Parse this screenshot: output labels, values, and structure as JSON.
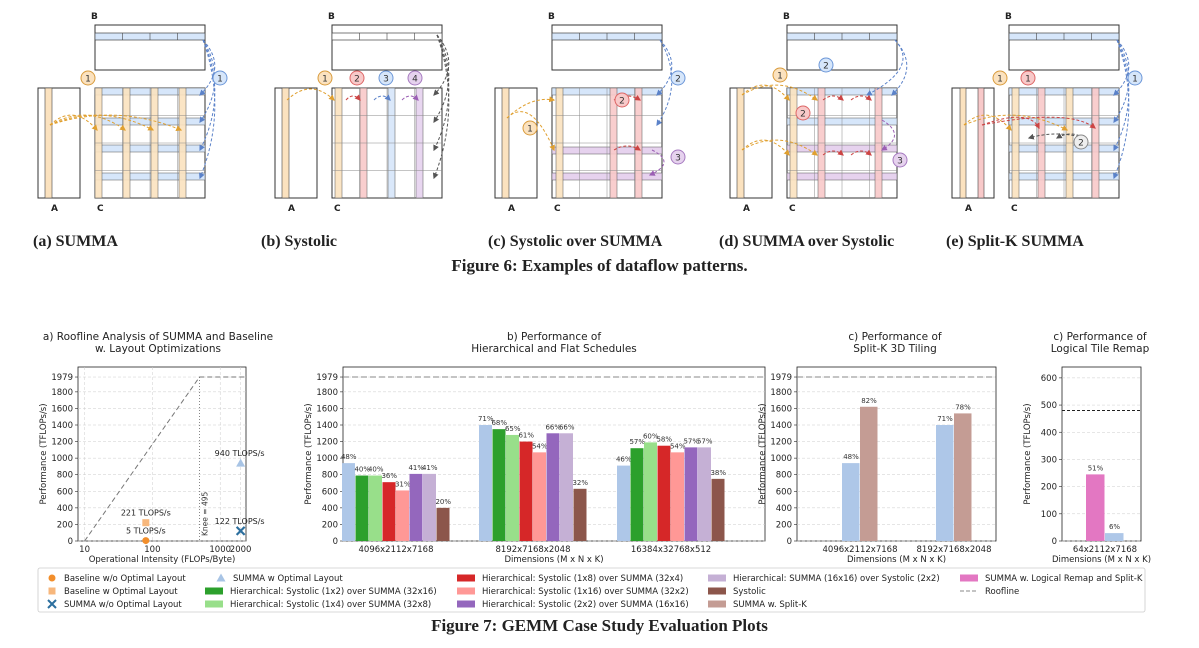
{
  "figure6": {
    "caption": "Figure 6: Examples of dataflow patterns.",
    "panels": [
      {
        "label": "(a) SUMMA",
        "badges": [
          "1",
          "1"
        ]
      },
      {
        "label": "(b) Systolic",
        "badges": [
          "1",
          "2",
          "3",
          "4"
        ]
      },
      {
        "label": "(c) Systolic over SUMMA",
        "badges": [
          "1",
          "2",
          "2",
          "3"
        ]
      },
      {
        "label": "(d) SUMMA over Systolic",
        "badges": [
          "1",
          "2",
          "2",
          "3"
        ]
      },
      {
        "label": "(e) Split-K SUMMA",
        "badges": [
          "1",
          "1",
          "1",
          "2"
        ]
      }
    ],
    "matrix_labels": {
      "a": "A",
      "b": "B",
      "c": "C"
    }
  },
  "figure7": {
    "caption": "Figure 7: GEMM Case Study Evaluation Plots",
    "legend": [
      "Baseline w/o Optimal Layout",
      "Baseline w Optimal Layout",
      "SUMMA w/o Optimal Layout",
      "SUMMA w Optimal Layout",
      "Hierarchical: Systolic (1x2) over SUMMA (32x16)",
      "Hierarchical: Systolic (1x4) over SUMMA (32x8)",
      "Hierarchical: Systolic (1x8) over SUMMA (32x4)",
      "Hierarchical: Systolic (1x16) over SUMMA (32x2)",
      "Hierarchical: Systolic (2x2) over SUMMA (16x16)",
      "Hierarchical: SUMMA (16x16) over Systolic (2x2)",
      "Systolic",
      "SUMMA w. Split-K",
      "SUMMA w. Logical Remap and Split-K",
      "Roofline"
    ]
  },
  "chart_data": [
    {
      "type": "scatter",
      "title": "a) Roofline Analysis of SUMMA and Baseline\nw. Layout Optimizations",
      "xlabel": "Operational Intensity (FLOPs/Byte)",
      "ylabel": "Performance (TFLOPs/s)",
      "xscale": "log",
      "xlim": [
        8,
        2400
      ],
      "ylim": [
        0,
        2100
      ],
      "xticks": [
        "10",
        "100",
        "1000",
        "2000"
      ],
      "yticks": [
        "0",
        "200",
        "400",
        "600",
        "800",
        "1000",
        "1200",
        "1400",
        "1600",
        "1800",
        "1979"
      ],
      "peak": 1979,
      "knee_label": "Knee = 495",
      "knee_x": 495,
      "points": [
        {
          "name": "Baseline w/o Optimal Layout",
          "x": 80,
          "y": 5,
          "label": "5 TLOPS/s",
          "color": "#f28e2b",
          "marker": "circle"
        },
        {
          "name": "Baseline w Optimal Layout",
          "x": 80,
          "y": 221,
          "label": "221 TLOPS/s",
          "color": "#f7b77c",
          "marker": "square"
        },
        {
          "name": "SUMMA w/o Optimal Layout",
          "x": 2000,
          "y": 122,
          "label": "122 TLOPS/s",
          "color": "#2c6f9e",
          "marker": "x"
        },
        {
          "name": "SUMMA w Optimal Layout",
          "x": 2000,
          "y": 940,
          "label": "940 TLOPS/s",
          "color": "#a8c4e5",
          "marker": "triangle"
        }
      ]
    },
    {
      "type": "bar",
      "title": "b) Performance of\nHierarchical and Flat Schedules",
      "xlabel": "Dimensions (M x N x K)",
      "ylabel": "Performance (TFLOPs/s)",
      "ylim": [
        0,
        2100
      ],
      "yticks": [
        "0",
        "200",
        "400",
        "600",
        "800",
        "1000",
        "1200",
        "1400",
        "1600",
        "1800",
        "1979"
      ],
      "peak": 1979,
      "categories": [
        "4096x2112x7168",
        "8192x7168x2048",
        "16384x32768x512"
      ],
      "series": [
        {
          "name": "SUMMA w Optimal Layout",
          "color": "#aec7e8",
          "values": [
            940,
            1400,
            910
          ],
          "labels": [
            "48%",
            "71%",
            "46%"
          ]
        },
        {
          "name": "Hierarchical: Systolic (1x2) over SUMMA (32x16)",
          "color": "#2ca02c",
          "values": [
            790,
            1350,
            1120
          ],
          "labels": [
            "40%",
            "68%",
            "57%"
          ]
        },
        {
          "name": "Hierarchical: Systolic (1x4) over SUMMA (32x8)",
          "color": "#98df8a",
          "values": [
            790,
            1280,
            1190
          ],
          "labels": [
            "40%",
            "65%",
            "60%"
          ]
        },
        {
          "name": "Hierarchical: Systolic (1x8) over SUMMA (32x4)",
          "color": "#d62728",
          "values": [
            710,
            1200,
            1150
          ],
          "labels": [
            "36%",
            "61%",
            "58%"
          ]
        },
        {
          "name": "Hierarchical: Systolic (1x16) over SUMMA (32x2)",
          "color": "#ff9896",
          "values": [
            610,
            1070,
            1070
          ],
          "labels": [
            "31%",
            "54%",
            "54%"
          ]
        },
        {
          "name": "Hierarchical: Systolic (2x2) over SUMMA (16x16)",
          "color": "#9467bd",
          "values": [
            810,
            1300,
            1130
          ],
          "labels": [
            "41%",
            "66%",
            "57%"
          ]
        },
        {
          "name": "Hierarchical: SUMMA (16x16) over Systolic (2x2)",
          "color": "#c5b0d5",
          "values": [
            810,
            1300,
            1130
          ],
          "labels": [
            "41%",
            "66%",
            "57%"
          ]
        },
        {
          "name": "Systolic",
          "color": "#8c564b",
          "values": [
            400,
            630,
            750
          ],
          "labels": [
            "20%",
            "32%",
            "38%"
          ]
        }
      ]
    },
    {
      "type": "bar",
      "title": "c) Performance of\nSplit-K 3D Tiling",
      "xlabel": "Dimensions (M x N x K)",
      "ylabel": "Performance (TFLOPs/s)",
      "ylim": [
        0,
        2100
      ],
      "yticks": [
        "0",
        "200",
        "400",
        "600",
        "800",
        "1000",
        "1200",
        "1400",
        "1600",
        "1800",
        "1979"
      ],
      "peak": 1979,
      "categories": [
        "4096x2112x7168",
        "8192x7168x2048"
      ],
      "series": [
        {
          "name": "SUMMA w Optimal Layout",
          "color": "#aec7e8",
          "values": [
            940,
            1400
          ],
          "labels": [
            "48%",
            "71%"
          ]
        },
        {
          "name": "SUMMA w. Split-K",
          "color": "#c49c94",
          "values": [
            1620,
            1540
          ],
          "labels": [
            "82%",
            "78%"
          ]
        }
      ]
    },
    {
      "type": "bar",
      "title": "c) Performance of\nLogical Tile Remap",
      "xlabel": "Dimensions (M x N x K)",
      "ylabel": "Performance (TFLOPs/s)",
      "ylim": [
        0,
        640
      ],
      "yticks": [
        "0",
        "100",
        "200",
        "300",
        "400",
        "500",
        "600"
      ],
      "peak": 480,
      "categories": [
        "64x2112x7168"
      ],
      "series": [
        {
          "name": "SUMMA w. Logical Remap and Split-K",
          "color": "#e377c2",
          "values": [
            245
          ],
          "labels": [
            "51%"
          ]
        },
        {
          "name": "SUMMA w Optimal Layout",
          "color": "#aec7e8",
          "values": [
            29
          ],
          "labels": [
            "6%"
          ]
        }
      ]
    }
  ]
}
